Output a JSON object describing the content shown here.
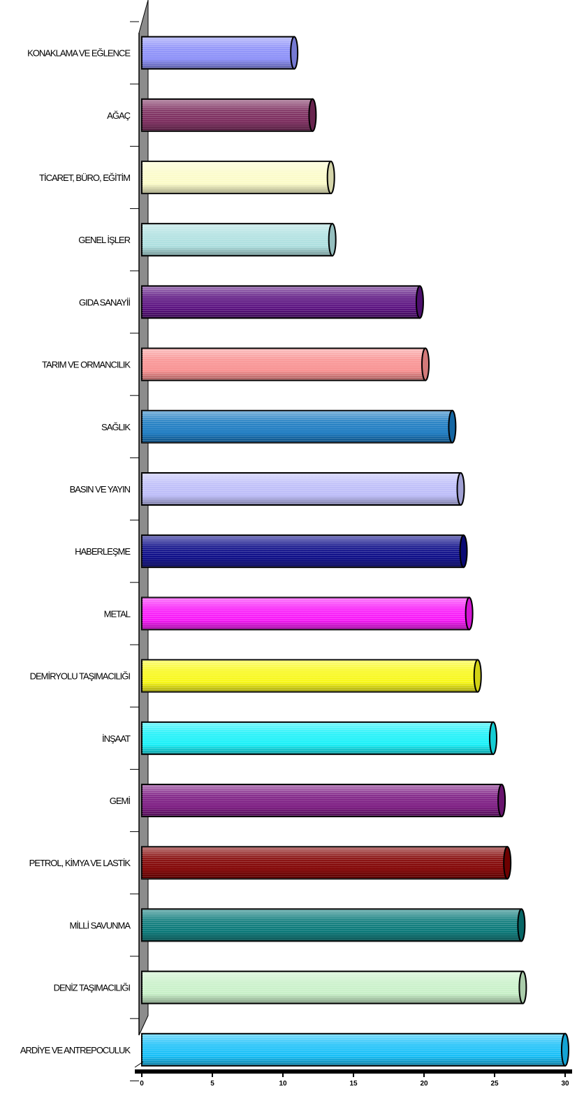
{
  "chart_data": {
    "type": "bar",
    "orientation": "horizontal",
    "style": "3d-cylinder",
    "title": "",
    "xlabel": "",
    "ylabel": "",
    "xlim": [
      0,
      30
    ],
    "ticks": [
      0,
      5,
      10,
      15,
      20,
      25,
      30
    ],
    "tick_labels": [
      "0",
      "5",
      "10",
      "15",
      "20",
      "25",
      "30"
    ],
    "grid": false,
    "legend": "none",
    "categories": [
      "KONAKLAMA VE EĞLENCE",
      "AĞAÇ",
      "TİCARET, BÜRO, EĞİTİM",
      "GENEL İŞLER",
      "GIDA SANAYİİ",
      "TARIM VE ORMANCILIK",
      "SAĞLIK",
      "BASIN VE YAYIN",
      "HABERLEŞME",
      "METAL",
      "DEMİRYOLU TAŞIMACILIĞI",
      "İNŞAAT",
      "GEMİ",
      "PETROL, KİMYA VE LASTİK",
      "MİLLİ SAVUNMA",
      "DENİZ TAŞIMACILIĞI",
      "ARDİYE VE ANTREPOCULUK"
    ],
    "values": [
      10.8,
      12.1,
      13.4,
      13.5,
      19.7,
      20.1,
      22.0,
      22.6,
      22.8,
      23.2,
      23.8,
      24.9,
      25.5,
      25.9,
      26.9,
      27.0,
      30.0
    ],
    "colors": [
      "#8a8ef8",
      "#7a2a5c",
      "#fbfbc8",
      "#aee0e0",
      "#5b1280",
      "#f89090",
      "#1878c0",
      "#bcbcf8",
      "#0c0c88",
      "#f818f8",
      "#f8f818",
      "#18f0f8",
      "#7a1880",
      "#800000",
      "#087878",
      "#c8f0c8",
      "#18c0f8"
    ]
  }
}
